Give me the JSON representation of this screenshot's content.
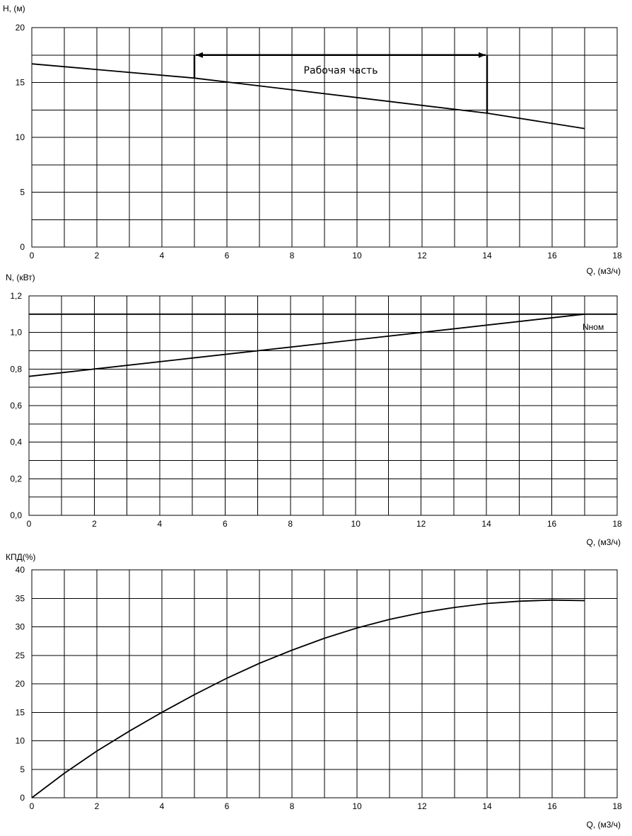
{
  "chart_data": [
    {
      "type": "line",
      "ylabel": "H, (м)",
      "xlabel": "Q, (м3/ч)",
      "xlim": [
        0,
        18
      ],
      "ylim": [
        0,
        20
      ],
      "xticks": [
        "0",
        "2",
        "4",
        "6",
        "8",
        "10",
        "12",
        "14",
        "16",
        "18"
      ],
      "yticks": [
        "0",
        "5",
        "10",
        "15",
        "20"
      ],
      "grid": true,
      "series": [
        {
          "x": [
            0,
            5,
            14,
            17
          ],
          "y": [
            16.7,
            15.4,
            12.2,
            10.8
          ]
        }
      ],
      "annotations": {
        "working_range_label": "Рабочая часть",
        "working_range_q": [
          5,
          14
        ],
        "working_range_arrow_h": 17.5
      }
    },
    {
      "type": "line",
      "ylabel": "N, (кВт)",
      "xlabel": "Q, (м3/ч)",
      "xlim": [
        0,
        18
      ],
      "ylim": [
        0,
        1.2
      ],
      "xticks": [
        "0",
        "2",
        "4",
        "6",
        "8",
        "10",
        "12",
        "14",
        "16",
        "18"
      ],
      "yticks": [
        "0,0",
        "0,2",
        "0,4",
        "0,6",
        "0,8",
        "1,0",
        "1,2"
      ],
      "grid": true,
      "series": [
        {
          "x": [
            0,
            2,
            12,
            17
          ],
          "y": [
            0.76,
            0.8,
            1.0,
            1.1
          ]
        },
        {
          "name": "Nном",
          "x": [
            0,
            18
          ],
          "y": [
            1.1,
            1.1
          ]
        }
      ],
      "annotations": {
        "nominal_label": "Nном"
      }
    },
    {
      "type": "line",
      "ylabel": "КПД(%)",
      "xlabel": "Q, (м3/ч)",
      "xlim": [
        0,
        18
      ],
      "ylim": [
        0,
        40
      ],
      "xticks": [
        "0",
        "2",
        "4",
        "6",
        "8",
        "10",
        "12",
        "14",
        "16",
        "18"
      ],
      "yticks": [
        "0",
        "5",
        "10",
        "15",
        "20",
        "25",
        "30",
        "35",
        "40"
      ],
      "grid": true,
      "series": [
        {
          "x": [
            0,
            1,
            2,
            3,
            4,
            5,
            6,
            7,
            8,
            9,
            10,
            11,
            12,
            13,
            14,
            15,
            16,
            17
          ],
          "y": [
            0,
            4.3,
            8.2,
            11.7,
            15.0,
            18.1,
            21.0,
            23.6,
            25.9,
            28.0,
            29.8,
            31.3,
            32.5,
            33.4,
            34.1,
            34.5,
            34.7,
            34.6
          ]
        }
      ]
    }
  ]
}
